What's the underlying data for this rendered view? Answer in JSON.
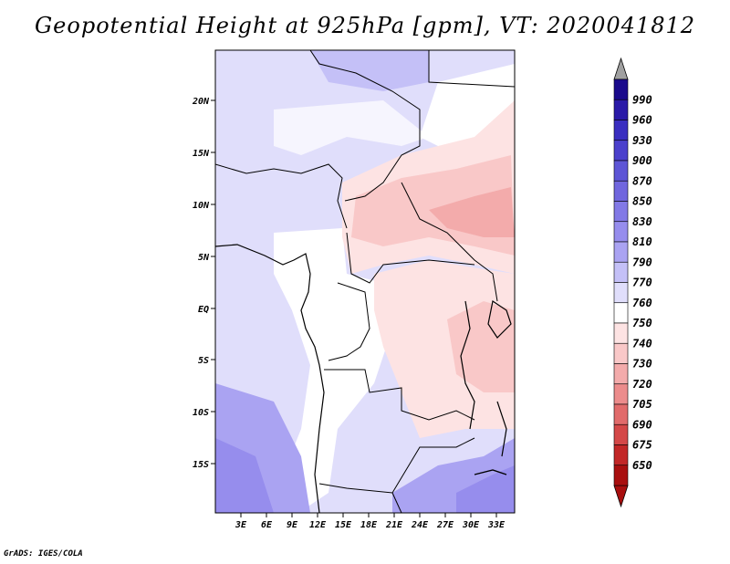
{
  "title": "Geopotential Height at 925hPa [gpm], VT: 2020041812",
  "credit": "GrADS: IGES/COLA",
  "map": {
    "lat_ticks": [
      "20N",
      "15N",
      "10N",
      "5N",
      "EQ",
      "5S",
      "10S",
      "15S"
    ],
    "lon_ticks": [
      "3E",
      "6E",
      "9E",
      "12E",
      "15E",
      "18E",
      "21E",
      "24E",
      "27E",
      "30E",
      "33E"
    ]
  },
  "colorbar": {
    "levels": [
      "990",
      "960",
      "930",
      "900",
      "870",
      "850",
      "830",
      "810",
      "790",
      "770",
      "760",
      "750",
      "740",
      "730",
      "720",
      "705",
      "690",
      "675",
      "650"
    ],
    "colors": [
      "#1a0a8c",
      "#2a1aa8",
      "#3a2ec0",
      "#4b40cc",
      "#5d55d6",
      "#7066de",
      "#8279e6",
      "#968ded",
      "#aaa3f2",
      "#c4c0f7",
      "#e0defb",
      "#ffffff",
      "#fde3e3",
      "#f9c8c8",
      "#f3abab",
      "#ec8c8c",
      "#e16b6b",
      "#d44848",
      "#c22727",
      "#a90f0f"
    ],
    "top_cap_color": "#a0a0a0",
    "bottom_cap_color": "#a90f0f"
  }
}
